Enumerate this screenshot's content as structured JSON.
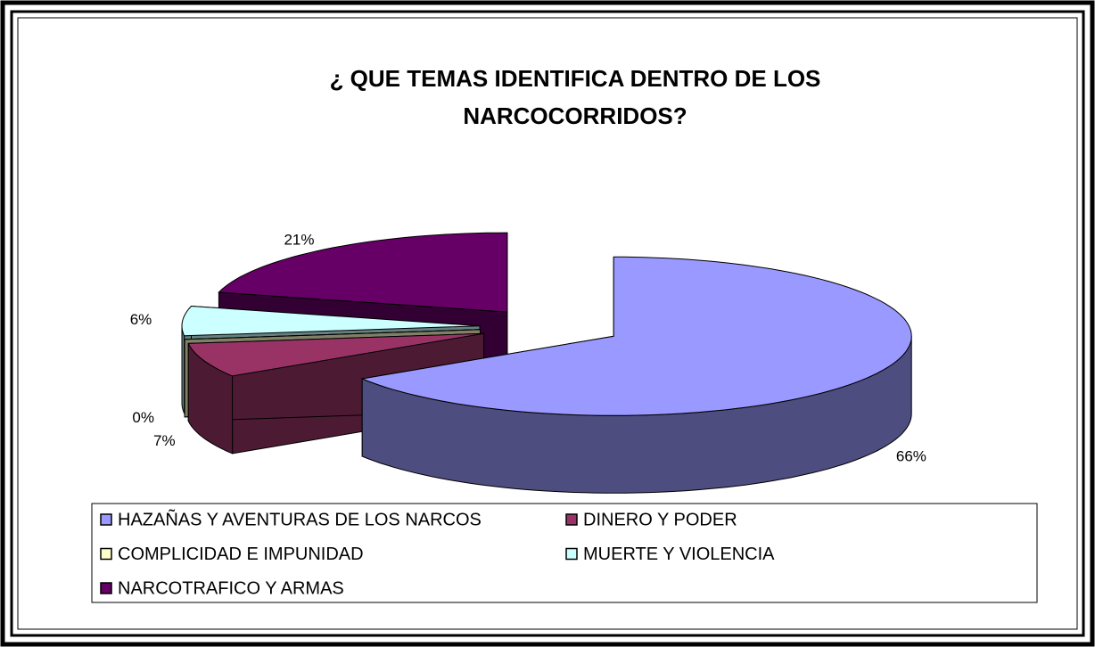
{
  "chart_data": {
    "type": "pie3d",
    "title": "¿ QUE TEMAS IDENTIFICA DENTRO DE LOS NARCOCORRIDOS?",
    "categories": [
      "HAZAÑAS Y AVENTURAS DE LOS NARCOS",
      "DINERO Y PODER",
      "COMPLICIDAD E IMPUNIDAD",
      "MUERTE Y VIOLENCIA",
      "NARCOTRAFICO Y ARMAS"
    ],
    "values": [
      66,
      7,
      0,
      6,
      21
    ],
    "value_labels": [
      "66%",
      "7%",
      "0%",
      "6%",
      "21%"
    ],
    "colors": [
      "#9999ff",
      "#993366",
      "#ffffcc",
      "#ccffff",
      "#660066"
    ],
    "legend": "bottom"
  }
}
